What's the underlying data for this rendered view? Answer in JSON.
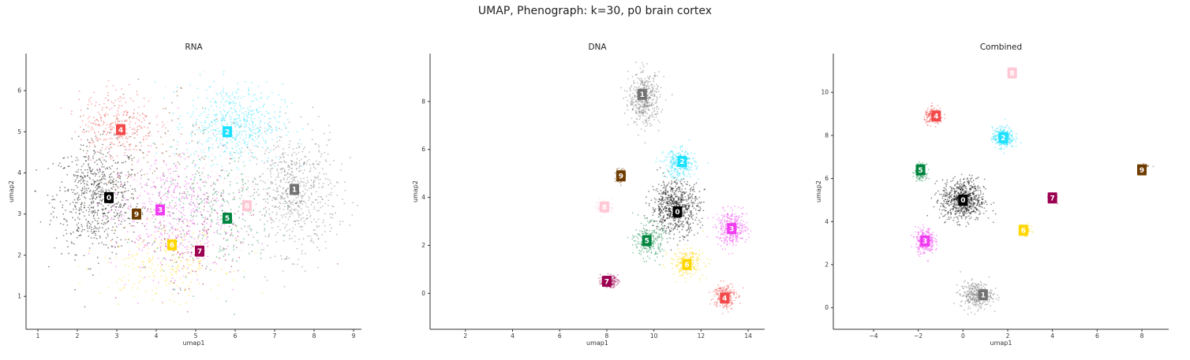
{
  "suptitle": "UMAP, Phenograph: k=30, p0 brain cortex",
  "palette": {
    "0": "#000000",
    "1": "#737373",
    "2": "#1ee0ff",
    "3": "#f03cf0",
    "4": "#f24a4a",
    "5": "#00853f",
    "6": "#ffd700",
    "7": "#9c0050",
    "8": "#ffc8d6",
    "9": "#6e3c00"
  },
  "chart_data": [
    {
      "type": "scatter",
      "title": "RNA",
      "xlabel": "umap1",
      "ylabel": "umap2",
      "xlim": [
        0.7,
        9.2
      ],
      "ylim": [
        0.2,
        6.9
      ],
      "xticks": [
        1,
        2,
        3,
        4,
        5,
        6,
        7,
        8,
        9
      ],
      "yticks": [
        1,
        2,
        3,
        4,
        5,
        6
      ],
      "cluster_labels": [
        {
          "label": "0",
          "x": 2.8,
          "y": 3.4
        },
        {
          "label": "1",
          "x": 7.5,
          "y": 3.6
        },
        {
          "label": "2",
          "x": 5.8,
          "y": 5.0
        },
        {
          "label": "3",
          "x": 4.1,
          "y": 3.1
        },
        {
          "label": "4",
          "x": 3.1,
          "y": 5.05
        },
        {
          "label": "5",
          "x": 5.8,
          "y": 2.9
        },
        {
          "label": "6",
          "x": 4.4,
          "y": 2.25
        },
        {
          "label": "7",
          "x": 5.1,
          "y": 2.1
        },
        {
          "label": "8",
          "x": 6.3,
          "y": 3.2
        },
        {
          "label": "9",
          "x": 3.5,
          "y": 3.0
        }
      ],
      "clusters": [
        {
          "label": "0",
          "cx": 2.5,
          "cy": 3.4,
          "sx": 0.9,
          "sy": 1.1,
          "n": 700
        },
        {
          "label": "1",
          "cx": 7.5,
          "cy": 3.5,
          "sx": 0.9,
          "sy": 1.2,
          "n": 650
        },
        {
          "label": "2",
          "cx": 6.0,
          "cy": 5.2,
          "sx": 1.0,
          "sy": 0.8,
          "n": 550
        },
        {
          "label": "3",
          "cx": 4.3,
          "cy": 3.0,
          "sx": 1.2,
          "sy": 1.2,
          "n": 450
        },
        {
          "label": "4",
          "cx": 3.0,
          "cy": 5.2,
          "sx": 0.8,
          "sy": 0.7,
          "n": 300
        },
        {
          "label": "5",
          "cx": 5.5,
          "cy": 3.0,
          "sx": 1.3,
          "sy": 1.3,
          "n": 280
        },
        {
          "label": "6",
          "cx": 4.2,
          "cy": 1.8,
          "sx": 1.3,
          "sy": 0.7,
          "n": 220
        },
        {
          "label": "7",
          "cx": 5.0,
          "cy": 2.5,
          "sx": 1.4,
          "sy": 1.3,
          "n": 150
        },
        {
          "label": "8",
          "cx": 5.0,
          "cy": 4.0,
          "sx": 1.8,
          "sy": 1.5,
          "n": 200
        },
        {
          "label": "9",
          "cx": 4.0,
          "cy": 4.2,
          "sx": 1.5,
          "sy": 1.4,
          "n": 120
        }
      ]
    },
    {
      "type": "scatter",
      "title": "DNA",
      "xlabel": "umap1",
      "ylabel": "umap2",
      "xlim": [
        0.5,
        14.7
      ],
      "ylim": [
        -1.5,
        10.0
      ],
      "xticks": [
        2,
        4,
        6,
        8,
        10,
        12,
        14
      ],
      "yticks": [
        0,
        2,
        4,
        6,
        8
      ],
      "cluster_labels": [
        {
          "label": "0",
          "x": 11.0,
          "y": 3.4
        },
        {
          "label": "1",
          "x": 9.5,
          "y": 8.3
        },
        {
          "label": "2",
          "x": 11.2,
          "y": 5.5
        },
        {
          "label": "3",
          "x": 13.3,
          "y": 2.7
        },
        {
          "label": "4",
          "x": 13.0,
          "y": -0.2
        },
        {
          "label": "5",
          "x": 9.7,
          "y": 2.2
        },
        {
          "label": "6",
          "x": 11.4,
          "y": 1.2
        },
        {
          "label": "7",
          "x": 8.0,
          "y": 0.5
        },
        {
          "label": "8",
          "x": 7.9,
          "y": 3.6
        },
        {
          "label": "9",
          "x": 8.6,
          "y": 4.9
        }
      ],
      "clusters": [
        {
          "label": "0",
          "cx": 10.9,
          "cy": 3.6,
          "sx": 0.85,
          "sy": 0.9,
          "n": 700
        },
        {
          "label": "1",
          "cx": 9.6,
          "cy": 8.1,
          "sx": 0.55,
          "sy": 0.9,
          "n": 450
        },
        {
          "label": "2",
          "cx": 11.1,
          "cy": 5.4,
          "sx": 0.55,
          "sy": 0.5,
          "n": 300
        },
        {
          "label": "3",
          "cx": 13.3,
          "cy": 2.7,
          "sx": 0.55,
          "sy": 0.6,
          "n": 320
        },
        {
          "label": "4",
          "cx": 13.0,
          "cy": -0.1,
          "sx": 0.4,
          "sy": 0.45,
          "n": 220
        },
        {
          "label": "5",
          "cx": 9.8,
          "cy": 2.2,
          "sx": 0.5,
          "sy": 0.6,
          "n": 250
        },
        {
          "label": "6",
          "cx": 11.4,
          "cy": 1.3,
          "sx": 0.6,
          "sy": 0.5,
          "n": 220
        },
        {
          "label": "7",
          "cx": 8.1,
          "cy": 0.5,
          "sx": 0.3,
          "sy": 0.2,
          "n": 150
        },
        {
          "label": "8",
          "cx": 7.9,
          "cy": 3.6,
          "sx": 0.3,
          "sy": 0.25,
          "n": 80
        },
        {
          "label": "9",
          "cx": 8.6,
          "cy": 4.9,
          "sx": 0.18,
          "sy": 0.3,
          "n": 60
        }
      ]
    },
    {
      "type": "scatter",
      "title": "Combined",
      "xlabel": "umap1",
      "ylabel": "umap2",
      "xlim": [
        -5.8,
        9.2
      ],
      "ylim": [
        -1.0,
        11.8
      ],
      "xticks": [
        -4,
        -2,
        0,
        2,
        4,
        6,
        8
      ],
      "yticks": [
        0,
        2,
        4,
        6,
        8,
        10
      ],
      "cluster_labels": [
        {
          "label": "0",
          "x": 0.0,
          "y": 5.0
        },
        {
          "label": "1",
          "x": 0.9,
          "y": 0.6
        },
        {
          "label": "2",
          "x": 1.8,
          "y": 7.9
        },
        {
          "label": "3",
          "x": -1.7,
          "y": 3.1
        },
        {
          "label": "4",
          "x": -1.2,
          "y": 8.9
        },
        {
          "label": "5",
          "x": -1.9,
          "y": 6.4
        },
        {
          "label": "6",
          "x": 2.7,
          "y": 3.6
        },
        {
          "label": "7",
          "x": 4.0,
          "y": 5.1
        },
        {
          "label": "8",
          "x": 2.2,
          "y": 10.9
        },
        {
          "label": "9",
          "x": 8.0,
          "y": 6.4
        }
      ],
      "clusters": [
        {
          "label": "0",
          "cx": 0.0,
          "cy": 5.0,
          "sx": 0.8,
          "sy": 0.8,
          "n": 700
        },
        {
          "label": "1",
          "cx": 0.6,
          "cy": 0.6,
          "sx": 0.6,
          "sy": 0.5,
          "n": 350
        },
        {
          "label": "2",
          "cx": 1.8,
          "cy": 7.9,
          "sx": 0.4,
          "sy": 0.4,
          "n": 300
        },
        {
          "label": "3",
          "cx": -1.7,
          "cy": 3.1,
          "sx": 0.35,
          "sy": 0.5,
          "n": 280
        },
        {
          "label": "4",
          "cx": -1.3,
          "cy": 8.9,
          "sx": 0.35,
          "sy": 0.3,
          "n": 200
        },
        {
          "label": "5",
          "cx": -1.9,
          "cy": 6.3,
          "sx": 0.2,
          "sy": 0.3,
          "n": 120
        },
        {
          "label": "6",
          "cx": 2.8,
          "cy": 3.6,
          "sx": 0.2,
          "sy": 0.2,
          "n": 100
        },
        {
          "label": "7",
          "cx": 4.0,
          "cy": 5.1,
          "sx": 0.15,
          "sy": 0.15,
          "n": 60
        },
        {
          "label": "8",
          "cx": 2.2,
          "cy": 10.9,
          "sx": 0.15,
          "sy": 0.12,
          "n": 40
        },
        {
          "label": "9",
          "cx": 8.2,
          "cy": 6.6,
          "sx": 0.12,
          "sy": 0.08,
          "n": 25
        }
      ]
    }
  ]
}
